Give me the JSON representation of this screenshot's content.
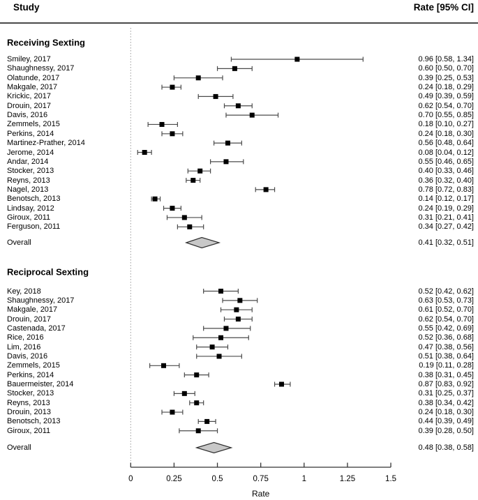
{
  "header": {
    "study": "Study",
    "rate_ci": "Rate [95% CI]"
  },
  "axis": {
    "label": "Rate",
    "tick_values": [
      0,
      0.25,
      0.5,
      0.75,
      1,
      1.25,
      1.5
    ],
    "tick_labels": [
      "0",
      "0.25",
      "0.5",
      "0.75",
      "1",
      "1.25",
      "1.5"
    ]
  },
  "colors": {
    "text": "#000000",
    "marker": "#000000",
    "ci_line": "#4a4a4a",
    "axis_line": "#333333",
    "dotted_line": "#999999",
    "diamond_fill": "#c8c8c8",
    "diamond_stroke": "#2f2f2f",
    "header_rule": "#4a4a4a"
  },
  "chart_data": {
    "type": "forest",
    "title": "",
    "xlabel": "Rate",
    "xlim": [
      0,
      1.5
    ],
    "x_ticks": [
      0,
      0.25,
      0.5,
      0.75,
      1,
      1.25,
      1.5
    ],
    "columns": {
      "left": "Study",
      "right": "Rate [95% CI]"
    },
    "zero_reference_line": 0,
    "groups": [
      {
        "title": "Receiving Sexting",
        "studies": [
          {
            "label": "Smiley, 2017",
            "rate": 0.96,
            "ci_low": 0.58,
            "ci_high": 1.34,
            "ci_text": "0.96 [0.58, 1.34]"
          },
          {
            "label": "Shaughnessy, 2017",
            "rate": 0.6,
            "ci_low": 0.5,
            "ci_high": 0.7,
            "ci_text": "0.60 [0.50, 0.70]"
          },
          {
            "label": "Olatunde, 2017",
            "rate": 0.39,
            "ci_low": 0.25,
            "ci_high": 0.53,
            "ci_text": "0.39 [0.25, 0.53]"
          },
          {
            "label": "Makgale, 2017",
            "rate": 0.24,
            "ci_low": 0.18,
            "ci_high": 0.29,
            "ci_text": "0.24 [0.18, 0.29]"
          },
          {
            "label": "Krickic, 2017",
            "rate": 0.49,
            "ci_low": 0.39,
            "ci_high": 0.59,
            "ci_text": "0.49 [0.39, 0.59]"
          },
          {
            "label": "Drouin, 2017",
            "rate": 0.62,
            "ci_low": 0.54,
            "ci_high": 0.7,
            "ci_text": "0.62 [0.54, 0.70]"
          },
          {
            "label": "Davis, 2016",
            "rate": 0.7,
            "ci_low": 0.55,
            "ci_high": 0.85,
            "ci_text": "0.70 [0.55, 0.85]"
          },
          {
            "label": "Zemmels, 2015",
            "rate": 0.18,
            "ci_low": 0.1,
            "ci_high": 0.27,
            "ci_text": "0.18 [0.10, 0.27]"
          },
          {
            "label": "Perkins, 2014",
            "rate": 0.24,
            "ci_low": 0.18,
            "ci_high": 0.3,
            "ci_text": "0.24 [0.18, 0.30]"
          },
          {
            "label": "Martinez-Prather, 2014",
            "rate": 0.56,
            "ci_low": 0.48,
            "ci_high": 0.64,
            "ci_text": "0.56 [0.48, 0.64]"
          },
          {
            "label": "Jerome, 2014",
            "rate": 0.08,
            "ci_low": 0.04,
            "ci_high": 0.12,
            "ci_text": "0.08 [0.04, 0.12]"
          },
          {
            "label": "Andar, 2014",
            "rate": 0.55,
            "ci_low": 0.46,
            "ci_high": 0.65,
            "ci_text": "0.55 [0.46, 0.65]"
          },
          {
            "label": "Stocker, 2013",
            "rate": 0.4,
            "ci_low": 0.33,
            "ci_high": 0.46,
            "ci_text": "0.40 [0.33, 0.46]"
          },
          {
            "label": "Reyns, 2013",
            "rate": 0.36,
            "ci_low": 0.32,
            "ci_high": 0.4,
            "ci_text": "0.36 [0.32, 0.40]"
          },
          {
            "label": "Nagel, 2013",
            "rate": 0.78,
            "ci_low": 0.72,
            "ci_high": 0.83,
            "ci_text": "0.78 [0.72, 0.83]"
          },
          {
            "label": "Benotsch, 2013",
            "rate": 0.14,
            "ci_low": 0.12,
            "ci_high": 0.17,
            "ci_text": "0.14 [0.12, 0.17]"
          },
          {
            "label": "Lindsay, 2012",
            "rate": 0.24,
            "ci_low": 0.19,
            "ci_high": 0.29,
            "ci_text": "0.24 [0.19, 0.29]"
          },
          {
            "label": "Giroux, 2011",
            "rate": 0.31,
            "ci_low": 0.21,
            "ci_high": 0.41,
            "ci_text": "0.31 [0.21, 0.41]"
          },
          {
            "label": "Ferguson, 2011",
            "rate": 0.34,
            "ci_low": 0.27,
            "ci_high": 0.42,
            "ci_text": "0.34 [0.27, 0.42]"
          }
        ],
        "overall": {
          "label": "Overall",
          "rate": 0.41,
          "ci_low": 0.32,
          "ci_high": 0.51,
          "ci_text": "0.41 [0.32, 0.51]"
        }
      },
      {
        "title": "Reciprocal Sexting",
        "studies": [
          {
            "label": "Key, 2018",
            "rate": 0.52,
            "ci_low": 0.42,
            "ci_high": 0.62,
            "ci_text": "0.52 [0.42, 0.62]"
          },
          {
            "label": "Shaughnessy, 2017",
            "rate": 0.63,
            "ci_low": 0.53,
            "ci_high": 0.73,
            "ci_text": "0.63 [0.53, 0.73]"
          },
          {
            "label": "Makgale, 2017",
            "rate": 0.61,
            "ci_low": 0.52,
            "ci_high": 0.7,
            "ci_text": "0.61 [0.52, 0.70]"
          },
          {
            "label": "Drouin, 2017",
            "rate": 0.62,
            "ci_low": 0.54,
            "ci_high": 0.7,
            "ci_text": "0.62 [0.54, 0.70]"
          },
          {
            "label": "Castenada, 2017",
            "rate": 0.55,
            "ci_low": 0.42,
            "ci_high": 0.69,
            "ci_text": "0.55 [0.42, 0.69]"
          },
          {
            "label": "Rice, 2016",
            "rate": 0.52,
            "ci_low": 0.36,
            "ci_high": 0.68,
            "ci_text": "0.52 [0.36, 0.68]"
          },
          {
            "label": "Lim, 2016",
            "rate": 0.47,
            "ci_low": 0.38,
            "ci_high": 0.56,
            "ci_text": "0.47 [0.38, 0.56]"
          },
          {
            "label": "Davis, 2016",
            "rate": 0.51,
            "ci_low": 0.38,
            "ci_high": 0.64,
            "ci_text": "0.51 [0.38, 0.64]"
          },
          {
            "label": "Zemmels, 2015",
            "rate": 0.19,
            "ci_low": 0.11,
            "ci_high": 0.28,
            "ci_text": "0.19 [0.11, 0.28]"
          },
          {
            "label": "Perkins, 2014",
            "rate": 0.38,
            "ci_low": 0.31,
            "ci_high": 0.45,
            "ci_text": "0.38 [0.31, 0.45]"
          },
          {
            "label": "Bauermeister, 2014",
            "rate": 0.87,
            "ci_low": 0.83,
            "ci_high": 0.92,
            "ci_text": "0.87 [0.83, 0.92]"
          },
          {
            "label": "Stocker, 2013",
            "rate": 0.31,
            "ci_low": 0.25,
            "ci_high": 0.37,
            "ci_text": "0.31 [0.25, 0.37]"
          },
          {
            "label": "Reyns, 2013",
            "rate": 0.38,
            "ci_low": 0.34,
            "ci_high": 0.42,
            "ci_text": "0.38 [0.34, 0.42]"
          },
          {
            "label": "Drouin, 2013",
            "rate": 0.24,
            "ci_low": 0.18,
            "ci_high": 0.3,
            "ci_text": "0.24 [0.18, 0.30]"
          },
          {
            "label": "Benotsch, 2013",
            "rate": 0.44,
            "ci_low": 0.39,
            "ci_high": 0.49,
            "ci_text": "0.44 [0.39, 0.49]"
          },
          {
            "label": "Giroux, 2011",
            "rate": 0.39,
            "ci_low": 0.28,
            "ci_high": 0.5,
            "ci_text": "0.39 [0.28, 0.50]"
          }
        ],
        "overall": {
          "label": "Overall",
          "rate": 0.48,
          "ci_low": 0.38,
          "ci_high": 0.58,
          "ci_text": "0.48 [0.38, 0.58]"
        }
      }
    ]
  }
}
